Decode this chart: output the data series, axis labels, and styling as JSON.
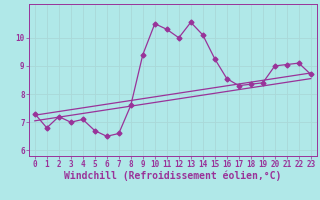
{
  "xlabel": "Windchill (Refroidissement éolien,°C)",
  "bg_color": "#b0e8e8",
  "line_color": "#993399",
  "grid_color": "#c8e8e8",
  "main_data_x": [
    0,
    1,
    2,
    3,
    4,
    5,
    6,
    7,
    8,
    9,
    10,
    11,
    12,
    13,
    14,
    15,
    16,
    17,
    18,
    19,
    20,
    21,
    22,
    23
  ],
  "main_data_y": [
    7.3,
    6.8,
    7.2,
    7.0,
    7.1,
    6.7,
    6.5,
    6.6,
    7.6,
    9.4,
    10.5,
    10.3,
    10.0,
    10.55,
    10.1,
    9.25,
    8.55,
    8.3,
    8.35,
    8.4,
    9.0,
    9.05,
    9.1,
    8.7
  ],
  "trend1_x": [
    0,
    23
  ],
  "trend1_y": [
    7.05,
    8.55
  ],
  "trend2_x": [
    0,
    23
  ],
  "trend2_y": [
    7.25,
    8.75
  ],
  "ylim": [
    5.8,
    11.2
  ],
  "xlim": [
    -0.5,
    23.5
  ],
  "yticks": [
    6,
    7,
    8,
    9,
    10
  ],
  "xticks": [
    0,
    1,
    2,
    3,
    4,
    5,
    6,
    7,
    8,
    9,
    10,
    11,
    12,
    13,
    14,
    15,
    16,
    17,
    18,
    19,
    20,
    21,
    22,
    23
  ],
  "tick_fontsize": 5.5,
  "xlabel_fontsize": 7.0,
  "marker_size": 2.5,
  "linewidth": 0.9
}
